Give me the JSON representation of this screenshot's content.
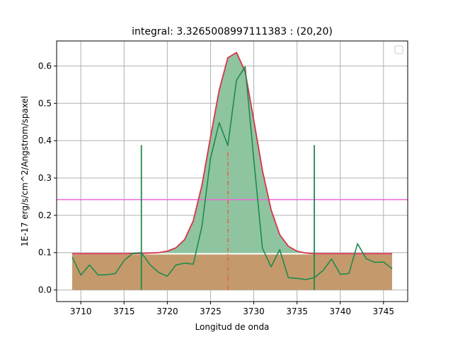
{
  "chart_data": {
    "type": "line",
    "title": "integral: 3.3265008997111383 : (20,20)",
    "xlabel": "Longitud de onda",
    "ylabel": "1E-17 erg/s/cm^2/Angstrom/spaxel",
    "xlim": [
      3707.2,
      3747.8
    ],
    "ylim": [
      -0.031,
      0.667
    ],
    "xticks": [
      3710,
      3715,
      3720,
      3725,
      3730,
      3735,
      3740,
      3745
    ],
    "yticks": [
      0.0,
      0.1,
      0.2,
      0.3,
      0.4,
      0.5,
      0.6
    ],
    "grid": true,
    "legend_position": "top-right",
    "colors": {
      "observed": "#1f8a4c",
      "model": "#d6334a",
      "continuum_fill": "#c49a6c",
      "line_fill": "#8fc4a0",
      "horizontal_level": "#ee66dd",
      "center_marker": "#e8603c",
      "window_markers": "#1f8a4c",
      "continuum_top": "#ffffff",
      "grid": "#b0b0b0"
    },
    "continuum_band": {
      "x_range": [
        3709,
        3746
      ],
      "y_top": 0.097,
      "y_bottom": 0.0
    },
    "horizontal_level": {
      "y": 0.242
    },
    "center_marker": {
      "x": 3727,
      "y_range": [
        0.0,
        0.37
      ]
    },
    "window_markers": [
      {
        "x": 3717,
        "y_range": [
          0.0,
          0.388
        ]
      },
      {
        "x": 3737,
        "y_range": [
          0.0,
          0.388
        ]
      }
    ],
    "model_series": {
      "x": [
        3709,
        3715,
        3717,
        3719,
        3720,
        3721,
        3722,
        3723,
        3724,
        3725,
        3726,
        3727,
        3728,
        3729,
        3730,
        3731,
        3732,
        3733,
        3734,
        3735,
        3736,
        3737,
        3746
      ],
      "y": [
        0.097,
        0.097,
        0.098,
        0.1,
        0.104,
        0.113,
        0.135,
        0.185,
        0.28,
        0.41,
        0.535,
        0.622,
        0.636,
        0.585,
        0.455,
        0.32,
        0.215,
        0.148,
        0.117,
        0.104,
        0.099,
        0.097,
        0.097
      ]
    },
    "observed_series": {
      "x": [
        3709,
        3710,
        3711,
        3712,
        3713,
        3714,
        3715,
        3716,
        3717,
        3718,
        3719,
        3720,
        3721,
        3722,
        3723,
        3724,
        3725,
        3726,
        3727,
        3728,
        3729,
        3730,
        3731,
        3732,
        3733,
        3734,
        3735,
        3736,
        3737,
        3738,
        3739,
        3740,
        3741,
        3742,
        3743,
        3744,
        3745,
        3746
      ],
      "y": [
        0.088,
        0.04,
        0.067,
        0.04,
        0.041,
        0.044,
        0.079,
        0.098,
        0.1,
        0.068,
        0.047,
        0.037,
        0.067,
        0.072,
        0.069,
        0.17,
        0.353,
        0.448,
        0.387,
        0.562,
        0.598,
        0.35,
        0.112,
        0.062,
        0.108,
        0.033,
        0.031,
        0.028,
        0.033,
        0.052,
        0.083,
        0.042,
        0.044,
        0.124,
        0.084,
        0.074,
        0.075,
        0.057
      ]
    }
  }
}
